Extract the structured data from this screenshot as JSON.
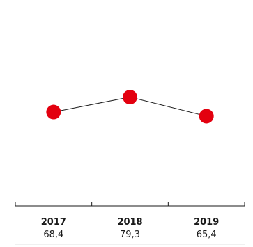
{
  "chart_data": {
    "type": "line",
    "categories": [
      "2017",
      "2018",
      "2019"
    ],
    "series": [
      {
        "values": [
          68.4,
          79.3,
          65.4
        ]
      }
    ],
    "value_labels": [
      "68,4",
      "79,3",
      "65,4"
    ],
    "title": "",
    "xlabel": "",
    "ylabel": "",
    "ylim": [
      0,
      150
    ],
    "grid": false,
    "legend": "none",
    "marker_color": "#e3000f",
    "line_color": "#1a1a1a",
    "axis_color": "#1a1a1a",
    "separator_color": "#e0e0e0"
  }
}
